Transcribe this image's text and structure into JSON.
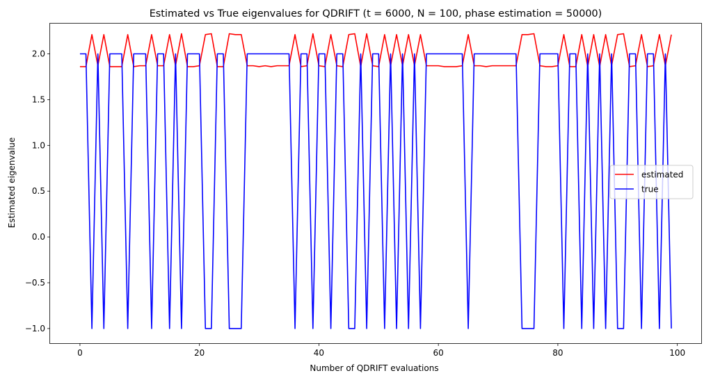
{
  "chart_data": {
    "type": "line",
    "title": "Estimated vs True eigenvalues for QDRIFT (t = 6000, N = 100, phase estimation = 50000)",
    "xlabel": "Number of QDRIFT evaluations",
    "ylabel": "Estimated eigenvalue",
    "xlim": [
      -5,
      104
    ],
    "ylim": [
      -1.16,
      2.33
    ],
    "xticks": [
      0,
      20,
      40,
      60,
      80,
      100
    ],
    "xtick_labels": [
      "0",
      "20",
      "40",
      "60",
      "80",
      "100"
    ],
    "yticks": [
      -1.0,
      -0.5,
      0.0,
      0.5,
      1.0,
      1.5,
      2.0
    ],
    "ytick_labels": [
      "−1.0",
      "−0.5",
      "0.0",
      "0.5",
      "1.0",
      "1.5",
      "2.0"
    ],
    "grid": false,
    "legend_position": "center-right",
    "series": [
      {
        "name": "estimated",
        "color": "#ff0000",
        "x": [
          0,
          1,
          2,
          3,
          4,
          5,
          6,
          7,
          8,
          9,
          10,
          11,
          12,
          13,
          14,
          15,
          16,
          17,
          18,
          19,
          20,
          21,
          22,
          23,
          24,
          25,
          26,
          27,
          28,
          29,
          30,
          31,
          32,
          33,
          34,
          35,
          36,
          37,
          38,
          39,
          40,
          41,
          42,
          43,
          44,
          45,
          46,
          47,
          48,
          49,
          50,
          51,
          52,
          53,
          54,
          55,
          56,
          57,
          58,
          59,
          60,
          61,
          62,
          63,
          64,
          65,
          66,
          67,
          68,
          69,
          70,
          71,
          72,
          73,
          74,
          75,
          76,
          77,
          78,
          79,
          80,
          81,
          82,
          83,
          84,
          85,
          86,
          87,
          88,
          89,
          90,
          91,
          92,
          93,
          94,
          95,
          96,
          97,
          98,
          99
        ],
        "values": [
          1.86,
          1.86,
          2.21,
          1.87,
          2.21,
          1.86,
          1.86,
          1.86,
          2.21,
          1.86,
          1.87,
          1.87,
          2.21,
          1.87,
          1.87,
          2.21,
          1.87,
          2.22,
          1.86,
          1.86,
          1.87,
          2.21,
          2.22,
          1.86,
          1.86,
          2.22,
          2.21,
          2.21,
          1.87,
          1.87,
          1.86,
          1.87,
          1.86,
          1.87,
          1.87,
          1.87,
          2.21,
          1.86,
          1.87,
          2.22,
          1.87,
          1.86,
          2.21,
          1.87,
          1.86,
          2.21,
          2.22,
          1.86,
          2.22,
          1.87,
          1.86,
          2.21,
          1.87,
          2.21,
          1.87,
          2.21,
          1.87,
          2.21,
          1.87,
          1.87,
          1.87,
          1.86,
          1.86,
          1.86,
          1.87,
          2.21,
          1.87,
          1.87,
          1.86,
          1.87,
          1.87,
          1.87,
          1.87,
          1.87,
          2.21,
          2.21,
          2.22,
          1.87,
          1.86,
          1.86,
          1.87,
          2.21,
          1.86,
          1.86,
          2.21,
          1.86,
          2.21,
          1.86,
          2.21,
          1.87,
          2.21,
          2.22,
          1.86,
          1.87,
          2.21,
          1.86,
          1.87,
          2.21,
          1.87,
          2.21
        ]
      },
      {
        "name": "true",
        "color": "#0000ff",
        "x": [
          0,
          1,
          2,
          3,
          4,
          5,
          6,
          7,
          8,
          9,
          10,
          11,
          12,
          13,
          14,
          15,
          16,
          17,
          18,
          19,
          20,
          21,
          22,
          23,
          24,
          25,
          26,
          27,
          28,
          29,
          30,
          31,
          32,
          33,
          34,
          35,
          36,
          37,
          38,
          39,
          40,
          41,
          42,
          43,
          44,
          45,
          46,
          47,
          48,
          49,
          50,
          51,
          52,
          53,
          54,
          55,
          56,
          57,
          58,
          59,
          60,
          61,
          62,
          63,
          64,
          65,
          66,
          67,
          68,
          69,
          70,
          71,
          72,
          73,
          74,
          75,
          76,
          77,
          78,
          79,
          80,
          81,
          82,
          83,
          84,
          85,
          86,
          87,
          88,
          89,
          90,
          91,
          92,
          93,
          94,
          95,
          96,
          97,
          98,
          99
        ],
        "values": [
          2,
          2,
          -1,
          2,
          -1,
          2,
          2,
          2,
          -1,
          2,
          2,
          2,
          -1,
          2,
          2,
          -1,
          2,
          -1,
          2,
          2,
          2,
          -1,
          -1,
          2,
          2,
          -1,
          -1,
          -1,
          2,
          2,
          2,
          2,
          2,
          2,
          2,
          2,
          -1,
          2,
          2,
          -1,
          2,
          2,
          -1,
          2,
          2,
          -1,
          -1,
          2,
          -1,
          2,
          2,
          -1,
          2,
          -1,
          2,
          -1,
          2,
          -1,
          2,
          2,
          2,
          2,
          2,
          2,
          2,
          -1,
          2,
          2,
          2,
          2,
          2,
          2,
          2,
          2,
          -1,
          -1,
          -1,
          2,
          2,
          2,
          2,
          -1,
          2,
          2,
          -1,
          2,
          -1,
          2,
          -1,
          2,
          -1,
          -1,
          2,
          2,
          -1,
          2,
          2,
          -1,
          2,
          -1
        ]
      }
    ]
  }
}
